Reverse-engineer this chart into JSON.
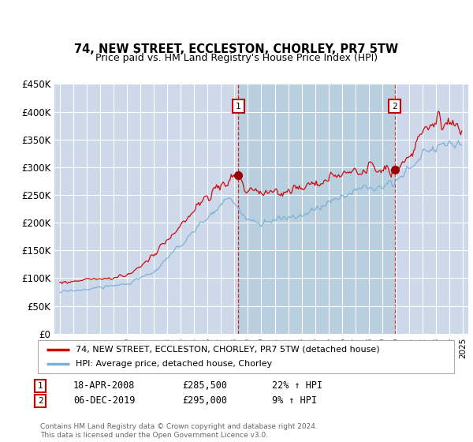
{
  "title": "74, NEW STREET, ECCLESTON, CHORLEY, PR7 5TW",
  "subtitle": "Price paid vs. HM Land Registry's House Price Index (HPI)",
  "bg_color": "#cdd9ea",
  "highlight_color": "#b8cfe0",
  "ylabel": "",
  "ylim": [
    0,
    450000
  ],
  "yticks": [
    0,
    50000,
    100000,
    150000,
    200000,
    250000,
    300000,
    350000,
    400000,
    450000
  ],
  "ytick_labels": [
    "£0",
    "£50K",
    "£100K",
    "£150K",
    "£200K",
    "£250K",
    "£300K",
    "£350K",
    "£400K",
    "£450K"
  ],
  "sale1_year": 2008.29,
  "sale1_price": 285500,
  "sale2_year": 2019.92,
  "sale2_price": 295000,
  "legend_line1": "74, NEW STREET, ECCLESTON, CHORLEY, PR7 5TW (detached house)",
  "legend_line2": "HPI: Average price, detached house, Chorley",
  "footer": "Contains HM Land Registry data © Crown copyright and database right 2024.\nThis data is licensed under the Open Government Licence v3.0.",
  "line_color_red": "#cc0000",
  "line_color_blue": "#7bafd4",
  "row_data": [
    [
      "1",
      "18-APR-2008",
      "£285,500",
      "22% ↑ HPI"
    ],
    [
      "2",
      "06-DEC-2019",
      "£295,000",
      "9% ↑ HPI"
    ]
  ]
}
